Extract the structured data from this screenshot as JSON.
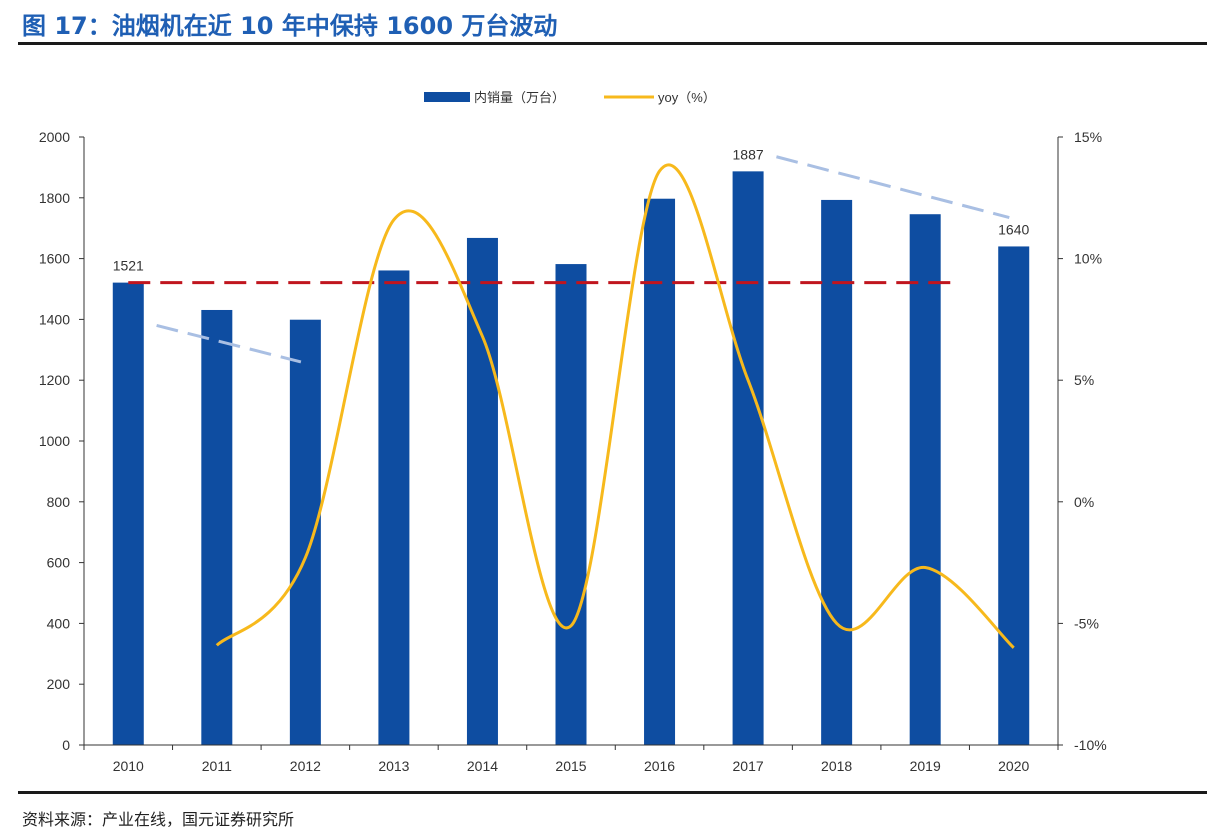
{
  "page": {
    "title": "图 17：油烟机在近 10 年中保持 1600 万台波动",
    "source": "资料来源：产业在线，国元证券研究所"
  },
  "colors": {
    "bar": "#0e4da1",
    "line": "#f7b91c",
    "ref_line": "#c0151e",
    "trend_line": "#a9bfe3",
    "title": "#1f5fb4"
  },
  "chart_data": {
    "type": "bar",
    "categories": [
      "2010",
      "2011",
      "2012",
      "2013",
      "2014",
      "2015",
      "2016",
      "2017",
      "2018",
      "2019",
      "2020"
    ],
    "series": [
      {
        "name": "内销量（万台）",
        "type": "bar",
        "axis": "left",
        "values": [
          1521,
          1431,
          1399,
          1561,
          1668,
          1582,
          1797,
          1887,
          1793,
          1746,
          1640
        ]
      },
      {
        "name": "yoy（%）",
        "type": "line",
        "axis": "right",
        "smooth": true,
        "values": [
          null,
          -5.9,
          -2.3,
          11.6,
          6.8,
          -5.1,
          13.6,
          5.0,
          -5.0,
          -2.7,
          -6.0
        ]
      }
    ],
    "data_labels": {
      "2010": "1521",
      "2017": "1887",
      "2020": "1640"
    },
    "reference_line": {
      "axis": "left",
      "value": 1521,
      "from": "2010",
      "to": "2019"
    },
    "trend_lines": [
      {
        "from": {
          "x": "2010",
          "y": 1380
        },
        "to": {
          "x": "2012",
          "y": 1260
        }
      },
      {
        "from": {
          "x": "2017",
          "y": 1935
        },
        "to": {
          "x": "2020",
          "y": 1735
        }
      }
    ],
    "left_axis": {
      "min": 0,
      "max": 2000,
      "ticks": [
        "0",
        "200",
        "400",
        "600",
        "800",
        "1000",
        "1200",
        "1400",
        "1600",
        "1800",
        "2000"
      ]
    },
    "right_axis": {
      "min": -10,
      "max": 15,
      "ticks": [
        "-10%",
        "-5%",
        "0%",
        "5%",
        "10%",
        "15%"
      ]
    },
    "legend_position": "top-center",
    "grid": false
  }
}
